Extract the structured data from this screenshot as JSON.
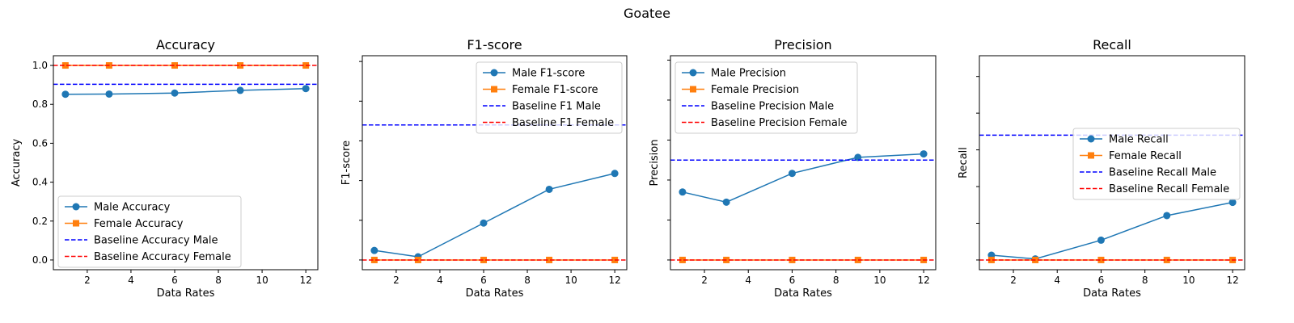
{
  "figure_title": "Goatee",
  "chart_data": [
    {
      "type": "line",
      "title": "Accuracy",
      "xlabel": "Data Rates",
      "ylabel": "Accuracy",
      "xlim": [
        0.45,
        12.55
      ],
      "ylim": [
        -0.05,
        1.05
      ],
      "xticks": [
        2,
        4,
        6,
        8,
        10,
        12
      ],
      "yticks": [
        0.0,
        0.2,
        0.4,
        0.6,
        0.8,
        1.0
      ],
      "ytick_labels": [
        "0.0",
        "0.2",
        "0.4",
        "0.6",
        "0.8",
        "1.0"
      ],
      "x": [
        1,
        3,
        6,
        9,
        12
      ],
      "series": [
        {
          "name": "Male Accuracy",
          "values": [
            0.852,
            0.853,
            0.858,
            0.872,
            0.881
          ],
          "color": "#1f77b4",
          "marker": "circle"
        },
        {
          "name": "Female Accuracy",
          "values": [
            1.0,
            1.0,
            1.0,
            1.0,
            1.0
          ],
          "color": "#ff7f0e",
          "marker": "square"
        }
      ],
      "baselines": [
        {
          "name": "Baseline Accuracy Male",
          "value": 0.903,
          "color": "#0000ff"
        },
        {
          "name": "Baseline Accuracy Female",
          "value": 1.0,
          "color": "#ff0000"
        }
      ],
      "legend": "lower-left",
      "grid": false
    },
    {
      "type": "line",
      "title": "F1-score",
      "xlabel": "Data Rates",
      "ylabel": "F1-score",
      "xlim": [
        0.45,
        12.55
      ],
      "ylim": [
        -0.0245,
        0.5145
      ],
      "xticks": [
        2,
        4,
        6,
        8,
        10,
        12
      ],
      "yticks": [
        0.0,
        0.1,
        0.2,
        0.3,
        0.4,
        0.5
      ],
      "ytick_labels": [],
      "x": [
        1,
        3,
        6,
        9,
        12
      ],
      "series": [
        {
          "name": "Male F1-score",
          "values": [
            0.024,
            0.008,
            0.093,
            0.178,
            0.218
          ],
          "color": "#1f77b4",
          "marker": "circle"
        },
        {
          "name": "Female F1-score",
          "values": [
            0.0,
            0.0,
            0.0,
            0.0,
            0.0
          ],
          "color": "#ff7f0e",
          "marker": "square"
        }
      ],
      "baselines": [
        {
          "name": "Baseline F1 Male",
          "value": 0.34,
          "color": "#0000ff"
        },
        {
          "name": "Baseline F1 Female",
          "value": 0.0,
          "color": "#ff0000"
        }
      ],
      "legend": "upper-right",
      "grid": false
    },
    {
      "type": "line",
      "title": "Precision",
      "xlabel": "Data Rates",
      "ylabel": "Precision",
      "xlim": [
        0.45,
        12.55
      ],
      "ylim": [
        -0.0365,
        0.7665
      ],
      "xticks": [
        2,
        4,
        6,
        8,
        10,
        12
      ],
      "yticks": [
        0.0,
        0.15,
        0.3,
        0.45,
        0.6,
        0.75
      ],
      "ytick_labels": [],
      "x": [
        1,
        3,
        6,
        9,
        12
      ],
      "series": [
        {
          "name": "Male Precision",
          "values": [
            0.255,
            0.217,
            0.325,
            0.385,
            0.398
          ],
          "color": "#1f77b4",
          "marker": "circle"
        },
        {
          "name": "Female Precision",
          "values": [
            0.0,
            0.0,
            0.0,
            0.0,
            0.0
          ],
          "color": "#ff7f0e",
          "marker": "square"
        }
      ],
      "baselines": [
        {
          "name": "Baseline Precision Male",
          "value": 0.375,
          "color": "#0000ff"
        },
        {
          "name": "Baseline Precision Female",
          "value": 0.0,
          "color": "#ff0000"
        }
      ],
      "legend": "upper-left",
      "grid": false
    },
    {
      "type": "line",
      "title": "Recall",
      "xlabel": "Data Rates",
      "ylabel": "Recall",
      "xlim": [
        0.45,
        12.55
      ],
      "ylim": [
        -0.0265,
        0.5565
      ],
      "xticks": [
        2,
        4,
        6,
        8,
        10,
        12
      ],
      "yticks": [
        0.0,
        0.1,
        0.2,
        0.3,
        0.4,
        0.5
      ],
      "ytick_labels": [],
      "x": [
        1,
        3,
        6,
        9,
        12
      ],
      "series": [
        {
          "name": "Male Recall",
          "values": [
            0.013,
            0.003,
            0.054,
            0.121,
            0.157
          ],
          "color": "#1f77b4",
          "marker": "circle"
        },
        {
          "name": "Female Recall",
          "values": [
            0.0,
            0.0,
            0.0,
            0.0,
            0.0
          ],
          "color": "#ff7f0e",
          "marker": "square"
        }
      ],
      "baselines": [
        {
          "name": "Baseline Recall Male",
          "value": 0.34,
          "color": "#0000ff"
        },
        {
          "name": "Baseline Recall Female",
          "value": 0.0,
          "color": "#ff0000"
        }
      ],
      "legend": "center-right",
      "grid": false
    }
  ]
}
